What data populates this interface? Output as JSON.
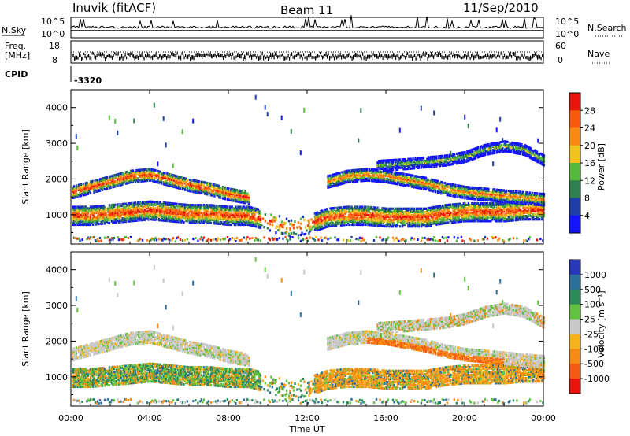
{
  "header": {
    "station": "Inuvik (fitACF)",
    "beam": "Beam 11",
    "date": "11/Sep/2010"
  },
  "top_panels": {
    "nsky_label": "N.Sky",
    "nsearch_label": "N.Search",
    "freq_label": "Freq.",
    "freq_unit": "[MHz]",
    "nave_label": "Nave",
    "cpid_label": "CPID",
    "cpid_value": "-3320",
    "nsky_ticks": [
      "10^5",
      "10^0"
    ],
    "nsearch_ticks": [
      "10^5",
      "10^0"
    ],
    "freq_ticks": [
      "18",
      "8"
    ],
    "nave_ticks": [
      "60",
      "0"
    ]
  },
  "colorbars": {
    "power": {
      "label": "Power [dB]",
      "ticks": [
        "4",
        "8",
        "12",
        "16",
        "20",
        "24",
        "28"
      ],
      "colors": [
        "#1414ff",
        "#1f3fa8",
        "#2f7f4f",
        "#55b93c",
        "#f0c21e",
        "#fb8a14",
        "#f75a0c",
        "#e8140c"
      ]
    },
    "velocity": {
      "label": "Velocity [m s⁻¹]",
      "ticks": [
        "1000",
        "500",
        "100",
        "25",
        "-25",
        "-100",
        "-500",
        "-1000"
      ],
      "colors": [
        "#2838b8",
        "#2b6f9a",
        "#2e8a5a",
        "#62c13f",
        "#c8c8c8",
        "#f6b21a",
        "#f58a14",
        "#f45a12",
        "#e8140c"
      ]
    }
  },
  "chart_data": [
    {
      "type": "heatmap",
      "panel": "power",
      "ylabel": "Slant Range [km]",
      "xlabel": "Time UT",
      "x_ticks": [
        "00:00",
        "04:00",
        "08:00",
        "12:00",
        "16:00",
        "20:00",
        "00:00"
      ],
      "y_ticks": [
        1000,
        2000,
        3000,
        4000
      ],
      "xlim": [
        0,
        24
      ],
      "ylim": [
        180,
        4500
      ],
      "bands": [
        {
          "name": "near",
          "points": [
            [
              0,
              950
            ],
            [
              1,
              950
            ],
            [
              2,
              1000
            ],
            [
              3,
              1050
            ],
            [
              4,
              1100
            ],
            [
              5,
              1050
            ],
            [
              6,
              1000
            ],
            [
              7,
              1000
            ],
            [
              8,
              950
            ],
            [
              9,
              950
            ],
            [
              10,
              800
            ],
            [
              11,
              600
            ],
            [
              12,
              700
            ],
            [
              13,
              900
            ],
            [
              14,
              950
            ],
            [
              15,
              950
            ],
            [
              16,
              900
            ],
            [
              17,
              900
            ],
            [
              18,
              900
            ],
            [
              19,
              1000
            ],
            [
              20,
              1050
            ],
            [
              21,
              1050
            ],
            [
              22,
              1050
            ],
            [
              23,
              1100
            ],
            [
              24,
              1100
            ]
          ]
        },
        {
          "name": "far",
          "points": [
            [
              0,
              1600
            ],
            [
              1,
              1750
            ],
            [
              2,
              1900
            ],
            [
              3,
              2050
            ],
            [
              4,
              2100
            ],
            [
              5,
              1950
            ],
            [
              6,
              1800
            ],
            [
              7,
              1700
            ],
            [
              8,
              1550
            ],
            [
              9,
              1450
            ],
            [
              13,
              1900
            ],
            [
              14,
              2050
            ],
            [
              15,
              2100
            ],
            [
              16,
              2050
            ],
            [
              17,
              1950
            ],
            [
              18,
              1850
            ],
            [
              19,
              1700
            ],
            [
              20,
              1600
            ],
            [
              21,
              1550
            ],
            [
              22,
              1500
            ],
            [
              23,
              1450
            ],
            [
              24,
              1400
            ]
          ]
        },
        {
          "name": "upper",
          "points": [
            [
              15.5,
              2350
            ],
            [
              17,
              2400
            ],
            [
              18,
              2450
            ],
            [
              19,
              2500
            ],
            [
              20,
              2600
            ],
            [
              21,
              2800
            ],
            [
              22,
              2900
            ],
            [
              23,
              2800
            ],
            [
              24,
              2500
            ]
          ]
        }
      ]
    },
    {
      "type": "heatmap",
      "panel": "velocity",
      "ylabel": "Slant Range [km]",
      "xlabel": "Time UT",
      "x_ticks": [
        "00:00",
        "04:00",
        "08:00",
        "12:00",
        "16:00",
        "20:00",
        "00:00"
      ],
      "y_ticks": [
        1000,
        2000,
        3000,
        4000
      ],
      "xlim": [
        0,
        24
      ],
      "ylim": [
        180,
        4500
      ]
    }
  ],
  "axes": {
    "xlabel": "Time UT",
    "ylabel": "Slant Range [km]"
  }
}
